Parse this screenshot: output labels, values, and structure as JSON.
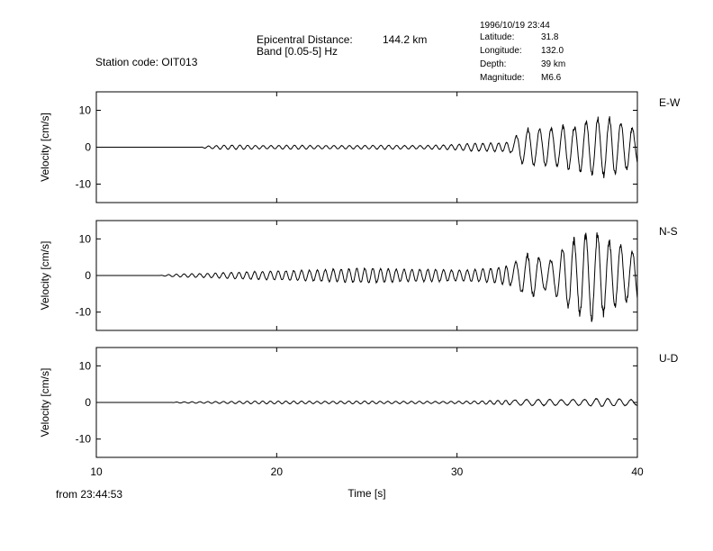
{
  "header": {
    "station_code": "Station code: OIT013",
    "epicentral_label": "Epicentral Distance:",
    "epicentral_value": "144.2 km",
    "band": "Band [0.05-5] Hz"
  },
  "event": {
    "datetime": "1996/10/19 23:44",
    "rows": [
      {
        "label": "Latitude:",
        "value": "31.8"
      },
      {
        "label": "Longitude:",
        "value": "132.0"
      },
      {
        "label": "Depth:",
        "value": "39 km"
      },
      {
        "label": "Magnitude:",
        "value": "M6.6"
      }
    ]
  },
  "footer": {
    "from_time": "from 23:44:53"
  },
  "colors": {
    "trace": "#000000",
    "axes": "#000000",
    "background": "#ffffff"
  },
  "chart_data": {
    "type": "line",
    "xlabel": "Time [s]",
    "xlim": [
      10,
      40
    ],
    "xticks": [
      10,
      20,
      30,
      40
    ],
    "grid": false,
    "panels": [
      {
        "component": "E-W",
        "ylabel": "Velocity [cm/s]",
        "ylim": [
          -15,
          15
        ],
        "yticks": [
          10,
          0,
          -10
        ],
        "x": [
          10,
          15.8,
          16,
          17,
          18,
          19,
          20,
          21,
          22,
          23,
          24,
          25,
          26,
          27,
          28,
          29,
          30,
          30.5,
          31,
          31.5,
          32,
          32.5,
          33,
          33.5,
          34,
          34.5,
          35,
          35.5,
          36,
          36.5,
          37,
          37.5,
          38,
          38.5,
          39,
          39.5,
          40
        ],
        "amplitude": [
          0,
          0,
          0.3,
          0.6,
          0.6,
          0.5,
          0.5,
          0.6,
          0.5,
          0.5,
          0.5,
          0.5,
          0.6,
          0.5,
          0.5,
          0.6,
          0.8,
          1.0,
          1.2,
          1.1,
          1.3,
          1.2,
          1.6,
          4.5,
          5.5,
          5.0,
          6.0,
          5.5,
          6.5,
          6.0,
          7.5,
          8.5,
          8.5,
          8.5,
          7.5,
          6.5,
          5.0
        ]
      },
      {
        "component": "N-S",
        "ylabel": "Velocity [cm/s]",
        "ylim": [
          -15,
          15
        ],
        "yticks": [
          10,
          0,
          -10
        ],
        "x": [
          10,
          13.5,
          14,
          15,
          16,
          17,
          18,
          19,
          20,
          21,
          22,
          23,
          24,
          25,
          26,
          27,
          28,
          29,
          30,
          30.5,
          31,
          31.5,
          32,
          32.5,
          33,
          33.5,
          34,
          34.5,
          35,
          35.5,
          36,
          36.5,
          37,
          37.5,
          38,
          38.5,
          39,
          39.5,
          40
        ],
        "amplitude": [
          0,
          0,
          0.3,
          0.5,
          0.6,
          0.8,
          1.0,
          1.2,
          1.3,
          1.5,
          1.6,
          1.8,
          2.0,
          2.2,
          2.0,
          1.8,
          1.8,
          1.8,
          1.6,
          1.6,
          1.8,
          2.0,
          2.2,
          2.5,
          3.0,
          5.0,
          6.5,
          5.5,
          4.0,
          6.0,
          9.0,
          10.5,
          12.0,
          13.0,
          12.0,
          10.0,
          9.0,
          7.5,
          7.0
        ]
      },
      {
        "component": "U-D",
        "ylabel": "Velocity [cm/s]",
        "ylim": [
          -15,
          15
        ],
        "yticks": [
          10,
          0,
          -10
        ],
        "x": [
          10,
          14.2,
          14.5,
          15,
          16,
          17,
          18,
          19,
          20,
          21,
          22,
          23,
          24,
          25,
          26,
          27,
          28,
          29,
          30,
          31,
          32,
          33,
          34,
          35,
          36,
          37,
          38,
          39,
          40
        ],
        "amplitude": [
          0,
          0,
          0.15,
          0.2,
          0.25,
          0.3,
          0.35,
          0.4,
          0.4,
          0.4,
          0.35,
          0.35,
          0.4,
          0.4,
          0.35,
          0.35,
          0.35,
          0.3,
          0.35,
          0.4,
          0.55,
          0.7,
          0.9,
          0.9,
          0.8,
          0.9,
          1.2,
          1.0,
          0.8
        ]
      }
    ]
  }
}
